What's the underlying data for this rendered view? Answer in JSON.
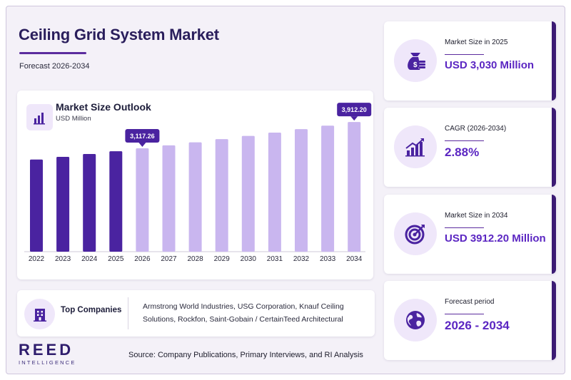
{
  "header": {
    "title": "Ceiling Grid System Market",
    "subtitle": "Forecast 2026-2034"
  },
  "chart_panel": {
    "title": "Market Size Outlook",
    "unit": "USD Million",
    "icon": "bar-chart-icon"
  },
  "chart_data": {
    "type": "bar",
    "title": "Market Size Outlook",
    "ylabel": "USD Million",
    "categories": [
      "2022",
      "2023",
      "2024",
      "2025",
      "2026",
      "2027",
      "2028",
      "2029",
      "2030",
      "2031",
      "2032",
      "2033",
      "2034"
    ],
    "values": [
      2780,
      2860,
      2945,
      3030,
      3117.26,
      3207,
      3299,
      3394,
      3492,
      3592,
      3696,
      3802,
      3912.2
    ],
    "historical_through": "2025",
    "colors": {
      "historical": "#4a23a0",
      "forecast": "#c9b6ef"
    },
    "ylim": [
      0,
      4000
    ],
    "grid": false,
    "callouts": [
      {
        "category": "2026",
        "label": "3,117.26"
      },
      {
        "category": "2034",
        "label": "3,912.20"
      }
    ]
  },
  "companies": {
    "title": "Top Companies",
    "text": "Armstrong World Industries, USG Corporation, Knauf Ceiling Solutions, Rockfon, Saint-Gobain / CertainTeed Architectural",
    "icon": "building-icon"
  },
  "brand": {
    "name": "REED",
    "sub": "INTELLIGENCE"
  },
  "source": "Source: Company Publications, Primary Interviews, and RI Analysis",
  "kpis": [
    {
      "label": "Market Size in 2025",
      "value": "USD 3,030 Million",
      "icon": "money-bag-icon"
    },
    {
      "label": "CAGR (2026-2034)",
      "value": "2.88%",
      "icon": "growth-chart-icon"
    },
    {
      "label": "Market Size in 2034",
      "value": "USD 3912.20 Million",
      "icon": "target-icon"
    },
    {
      "label": "Forecast period",
      "value": "2026 - 2034",
      "icon": "globe-icon"
    }
  ],
  "theme": {
    "accent": "#5b26c2",
    "dark": "#3c1b74",
    "light": "#efe7fa"
  }
}
